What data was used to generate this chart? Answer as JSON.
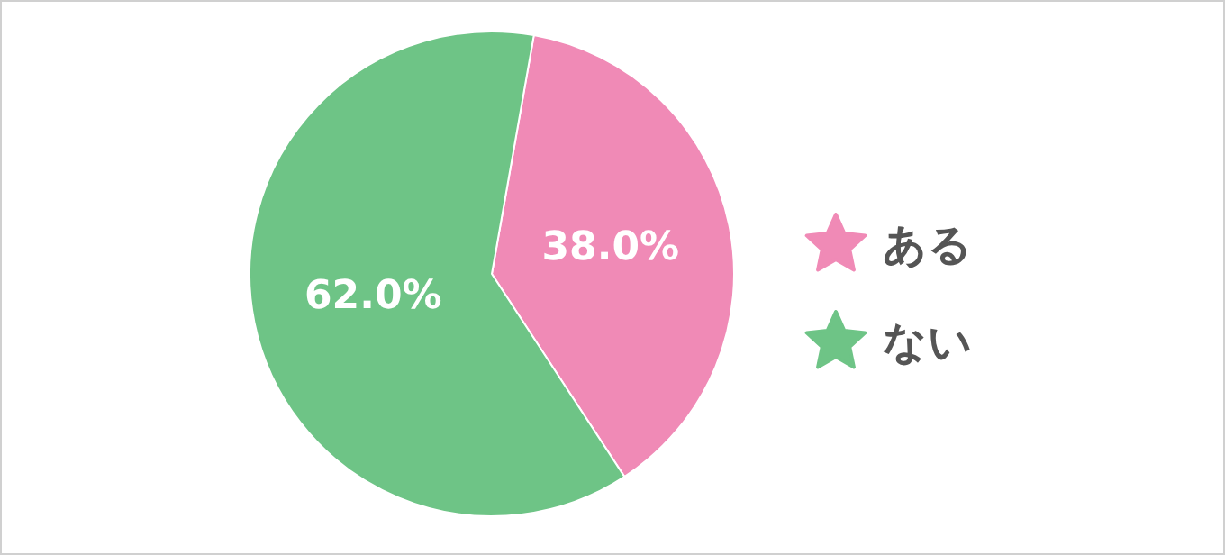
{
  "chart_data": {
    "type": "pie",
    "categories": [
      "ある",
      "ない"
    ],
    "values": [
      38.0,
      62.0
    ],
    "colors": [
      "#f08ab6",
      "#6ec486"
    ],
    "value_labels": [
      "38.0%",
      "62.0%"
    ],
    "legend": "right",
    "marker": "star"
  }
}
